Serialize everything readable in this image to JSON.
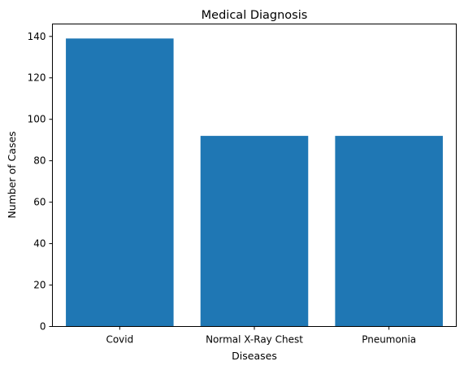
{
  "chart_data": {
    "type": "bar",
    "title": "Medical Diagnosis",
    "xlabel": "Diseases",
    "ylabel": "Number of Cases",
    "categories": [
      "Covid",
      "Normal X-Ray Chest",
      "Pneumonia"
    ],
    "values": [
      139,
      92,
      92
    ],
    "ylim": [
      0,
      146
    ],
    "yticks": [
      0,
      20,
      40,
      60,
      80,
      100,
      120,
      140
    ],
    "bar_color": "#1f77b4",
    "grid": false,
    "legend": "none"
  }
}
